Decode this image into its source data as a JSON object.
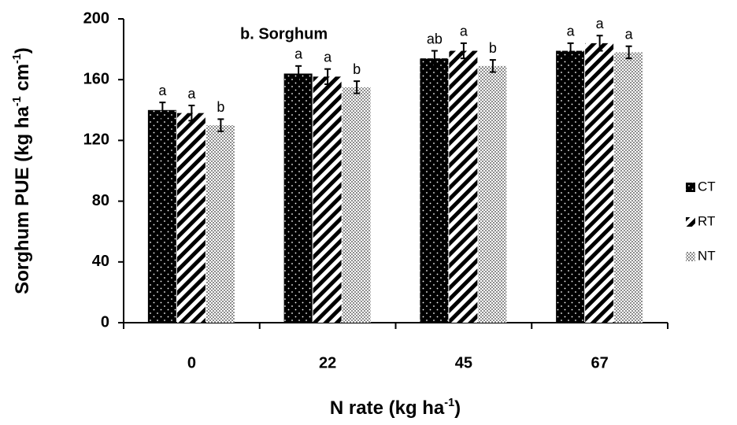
{
  "chart_data": {
    "type": "bar",
    "title": "b. Sorghum",
    "x_label": [
      "N rate (kg ha",
      "-1",
      ")"
    ],
    "y_label": [
      "Sorghum PUE (kg ha",
      "-1",
      " cm",
      "-1",
      ")"
    ],
    "categories": [
      "0",
      "22",
      "45",
      "67"
    ],
    "series": [
      {
        "name": "CT",
        "color": "#000000",
        "pattern": "dots",
        "values": [
          140,
          164,
          174,
          179
        ],
        "errors": [
          5,
          5,
          5,
          5
        ],
        "labels": [
          "a",
          "a",
          "ab",
          "a"
        ]
      },
      {
        "name": "RT",
        "color": "#000000",
        "pattern": "stripes",
        "values": [
          138,
          162,
          179,
          184
        ],
        "errors": [
          5,
          5,
          5,
          5
        ],
        "labels": [
          "a",
          "a",
          "a",
          "a"
        ]
      },
      {
        "name": "NT",
        "color": "#8c8c8c",
        "pattern": "crosshatch",
        "values": [
          130,
          155,
          169,
          178
        ],
        "errors": [
          4,
          4,
          4,
          4
        ],
        "labels": [
          "b",
          "b",
          "b",
          "a"
        ]
      }
    ],
    "ylim": [
      0,
      200
    ],
    "yticks": [
      0,
      40,
      80,
      120,
      160,
      200
    ],
    "grid": false,
    "legend": "right"
  }
}
